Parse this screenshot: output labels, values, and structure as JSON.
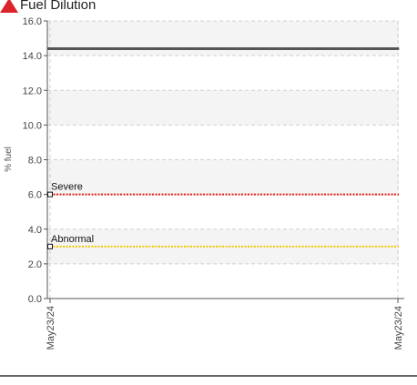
{
  "chart_data": {
    "type": "line",
    "title": "Fuel Dilution",
    "ylabel": "% fuel",
    "xlabel": "",
    "ylim": [
      0,
      16
    ],
    "yticks": [
      0,
      2,
      4,
      6,
      8,
      10,
      12,
      14,
      16
    ],
    "ytick_labels": [
      "0.0",
      "2.0",
      "4.0",
      "6.0",
      "8.0",
      "10.0",
      "12.0",
      "14.0",
      "16.0"
    ],
    "x_categories": [
      "May23/24",
      "May23/24"
    ],
    "grid": true,
    "band_colors": [
      "#f4f4f4",
      "#ffffff"
    ],
    "series": [
      {
        "values": [
          14.4,
          14.4
        ],
        "color": "#555555",
        "style": "solid"
      }
    ],
    "thresholds": [
      {
        "label": "Severe",
        "value": 6.0,
        "color": "#e8201a",
        "style": "dotted"
      },
      {
        "label": "Abnormal",
        "value": 3.0,
        "color": "#f2c600",
        "style": "dotted"
      }
    ],
    "title_icon": "warning-triangle-icon",
    "title_icon_color": "#d8242a"
  }
}
